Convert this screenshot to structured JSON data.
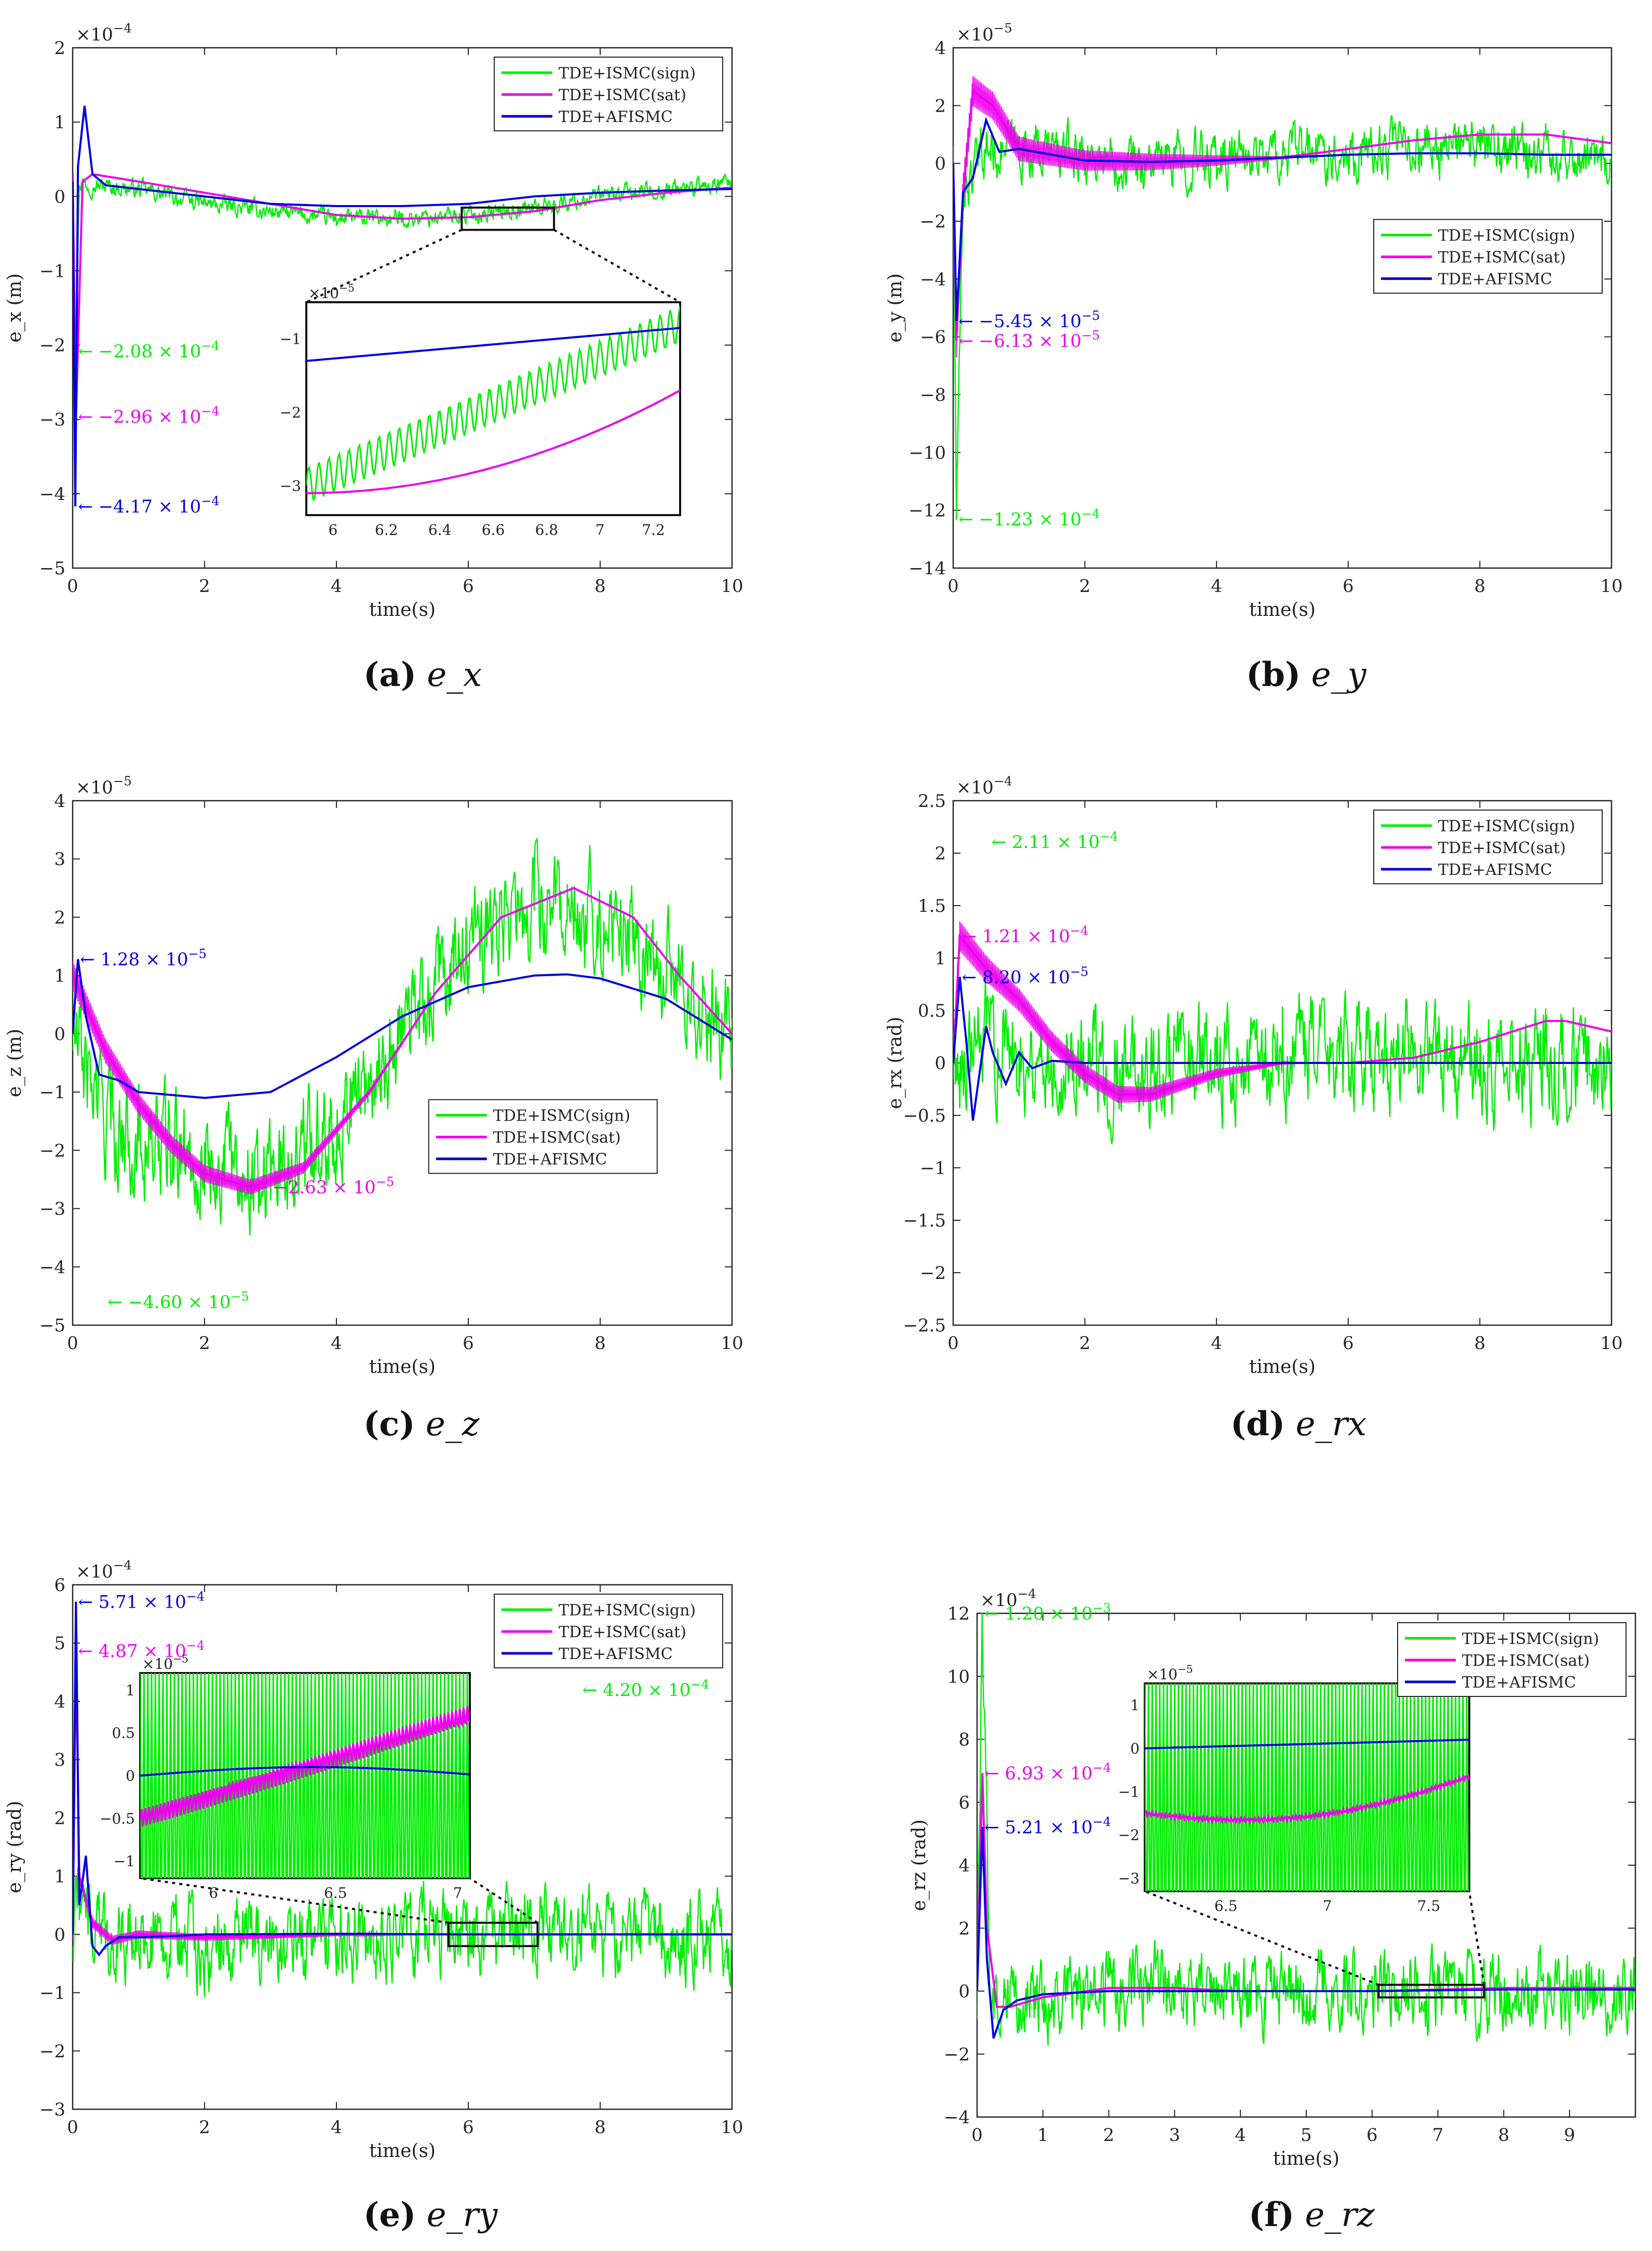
{
  "figure": {
    "panels": [
      {
        "caption_label": "(a)",
        "caption_symbol": "e_x"
      },
      {
        "caption_label": "(b)",
        "caption_symbol": "e_y"
      },
      {
        "caption_label": "(c)",
        "caption_symbol": "e_z"
      },
      {
        "caption_label": "(d)",
        "caption_symbol": "e_rx"
      },
      {
        "caption_label": "(e)",
        "caption_symbol": "e_ry"
      },
      {
        "caption_label": "(f)",
        "caption_symbol": "e_rz"
      }
    ]
  },
  "chart_data": [
    {
      "id": "a",
      "type": "line",
      "caption": "(a) e_x",
      "xlabel": "time(s)",
      "ylabel": "e_x (m)",
      "y_exponent": "×10^-4",
      "xlim": [
        0,
        10
      ],
      "ylim": [
        -5,
        2
      ],
      "xticks": [
        0,
        2,
        4,
        6,
        8,
        10
      ],
      "yticks": [
        -5,
        -4,
        -3,
        -2,
        -1,
        0,
        1,
        2
      ],
      "legend": [
        "TDE+ISMC(sign)",
        "TDE+ISMC(sat)",
        "TDE+AFISMC"
      ],
      "legend_position": "top-right",
      "colors": [
        "#00ee00",
        "#ee00ee",
        "#0000dd"
      ],
      "series": [
        {
          "name": "TDE+ISMC(sign)",
          "x": [
            0,
            0.05,
            0.1,
            0.3,
            1,
            2,
            3,
            4,
            5,
            6,
            7,
            8,
            9,
            10
          ],
          "y": [
            0,
            -2.08,
            0.2,
            0.15,
            0.1,
            -0.1,
            -0.2,
            -0.3,
            -0.3,
            -0.25,
            -0.15,
            0,
            0.1,
            0.15
          ],
          "noise": 0.12
        },
        {
          "name": "TDE+ISMC(sat)",
          "x": [
            0,
            0.05,
            0.15,
            0.3,
            1,
            2,
            3,
            4,
            5,
            6,
            7,
            8,
            9,
            10
          ],
          "y": [
            0.3,
            -2.96,
            0.2,
            0.3,
            0.2,
            0.05,
            -0.1,
            -0.25,
            -0.3,
            -0.28,
            -0.2,
            -0.05,
            0.05,
            0.12
          ]
        },
        {
          "name": "TDE+AFISMC",
          "x": [
            0,
            0.04,
            0.08,
            0.18,
            0.3,
            0.5,
            1,
            2,
            3,
            4,
            5,
            6,
            7,
            8,
            9,
            10
          ],
          "y": [
            0.2,
            -4.17,
            0.4,
            1.22,
            0.3,
            0.15,
            0.1,
            0,
            -0.1,
            -0.13,
            -0.13,
            -0.1,
            0,
            0.05,
            0.08,
            0.1
          ]
        }
      ],
      "annotations": [
        {
          "text": "-2.08 × 10^-4",
          "x": 0.05,
          "y": -2.08,
          "color": "#00ee00"
        },
        {
          "text": "-2.96 × 10^-4",
          "x": 0.05,
          "y": -2.96,
          "color": "#ee00ee"
        },
        {
          "text": "-4.17 × 10^-4",
          "x": 0.05,
          "y": -4.17,
          "color": "#0000dd"
        }
      ],
      "zoom_box": {
        "xlim": [
          5.9,
          7.3
        ],
        "ylim": [
          -3.4,
          -0.5
        ],
        "exponent": "×10^-5",
        "xticks": [
          6,
          6.2,
          6.4,
          6.6,
          6.8,
          7,
          7.2
        ],
        "yticks": [
          -3,
          -2,
          -1
        ]
      }
    },
    {
      "id": "b",
      "type": "line",
      "caption": "(b) e_y",
      "xlabel": "time(s)",
      "ylabel": "e_y (m)",
      "y_exponent": "×10^-5",
      "xlim": [
        0,
        10
      ],
      "ylim": [
        -14,
        4
      ],
      "xticks": [
        0,
        2,
        4,
        6,
        8,
        10
      ],
      "yticks": [
        -14,
        -12,
        -10,
        -8,
        -6,
        -4,
        -2,
        0,
        2,
        4
      ],
      "legend": [
        "TDE+ISMC(sign)",
        "TDE+ISMC(sat)",
        "TDE+AFISMC"
      ],
      "legend_position": "right",
      "colors": [
        "#00ee00",
        "#ee00ee",
        "#0000dd"
      ],
      "series": [
        {
          "name": "TDE+ISMC(sign)",
          "x": [
            0,
            0.05,
            0.15,
            0.5,
            1,
            2,
            3,
            4,
            5,
            6,
            7,
            8,
            9,
            10
          ],
          "y": [
            0,
            -12.3,
            -1,
            0.5,
            0.5,
            0.3,
            0,
            0.2,
            0.3,
            0.4,
            0.5,
            0.5,
            0.4,
            0.3
          ],
          "noise": 0.9
        },
        {
          "name": "TDE+ISMC(sat)",
          "x": [
            0,
            0.05,
            0.15,
            0.3,
            0.6,
            1,
            2,
            3,
            4,
            5,
            6,
            7,
            8,
            9,
            10
          ],
          "y": [
            0,
            -6.13,
            -1,
            2.5,
            2.0,
            0.5,
            0.1,
            0.05,
            0.1,
            0.2,
            0.5,
            0.8,
            1.0,
            1.0,
            0.7
          ],
          "band": 1.2
        },
        {
          "name": "TDE+AFISMC",
          "x": [
            0,
            0.05,
            0.15,
            0.3,
            0.5,
            0.7,
            1,
            1.5,
            2,
            3,
            4,
            5,
            6,
            7,
            8,
            9,
            10
          ],
          "y": [
            0,
            -5.45,
            -1,
            -0.5,
            1.5,
            0.4,
            0.5,
            0.3,
            0.1,
            0.05,
            0.1,
            0.2,
            0.3,
            0.35,
            0.35,
            0.3,
            0.3
          ]
        }
      ],
      "annotations": [
        {
          "text": "-5.45 × 10^-5",
          "x": 0.05,
          "y": -5.45,
          "color": "#0000dd"
        },
        {
          "text": "-6.13 × 10^-5",
          "x": 0.05,
          "y": -6.13,
          "color": "#ee00ee"
        },
        {
          "text": "-1.23 × 10^-4",
          "x": 0.05,
          "y": -12.3,
          "color": "#00ee00"
        }
      ]
    },
    {
      "id": "c",
      "type": "line",
      "caption": "(c) e_z",
      "xlabel": "time(s)",
      "ylabel": "e_z (m)",
      "y_exponent": "×10^-5",
      "xlim": [
        0,
        10
      ],
      "ylim": [
        -5,
        4
      ],
      "xticks": [
        0,
        2,
        4,
        6,
        8,
        10
      ],
      "yticks": [
        -5,
        -4,
        -3,
        -2,
        -1,
        0,
        1,
        2,
        3,
        4
      ],
      "legend": [
        "TDE+ISMC(sign)",
        "TDE+ISMC(sat)",
        "TDE+AFISMC"
      ],
      "legend_position": "lower-right",
      "colors": [
        "#00ee00",
        "#ee00ee",
        "#0000dd"
      ],
      "series": [
        {
          "name": "TDE+ISMC(sign)",
          "x": [
            0,
            0.5,
            1,
            2,
            3,
            4,
            5,
            6,
            7,
            7.5,
            8,
            9,
            10
          ],
          "y": [
            0,
            -1.5,
            -1.8,
            -2.2,
            -2.4,
            -1.5,
            0,
            1.5,
            2.2,
            2.3,
            2.0,
            1.0,
            0
          ],
          "noise": 0.9
        },
        {
          "name": "TDE+ISMC(sat)",
          "x": [
            0,
            0.5,
            1,
            1.5,
            2,
            2.7,
            3.5,
            4.5,
            5.5,
            6.5,
            7.6,
            8.5,
            9.2,
            10
          ],
          "y": [
            1.0,
            -0.3,
            -1.2,
            -1.9,
            -2.4,
            -2.63,
            -2.3,
            -1.0,
            0.7,
            2.0,
            2.5,
            2.0,
            1.0,
            0
          ],
          "band": 0.5
        },
        {
          "name": "TDE+AFISMC",
          "x": [
            0,
            0.08,
            0.2,
            0.4,
            0.7,
            1,
            1.5,
            2,
            3,
            4,
            5,
            6,
            7,
            7.5,
            8,
            9,
            10
          ],
          "y": [
            0,
            1.28,
            0.3,
            -0.7,
            -0.8,
            -1.0,
            -1.05,
            -1.1,
            -1.0,
            -0.4,
            0.3,
            0.8,
            1.0,
            1.02,
            0.95,
            0.6,
            -0.1
          ]
        }
      ],
      "annotations": [
        {
          "text": "1.28 × 10^-5",
          "x": 0.08,
          "y": 1.28,
          "color": "#0000dd"
        },
        {
          "text": "-2.63 × 10^-5",
          "x": 2.7,
          "y": -2.63,
          "color": "#ee00ee"
        },
        {
          "text": "-4.60 × 10^-5",
          "x": 0.5,
          "y": -4.6,
          "color": "#00ee00"
        }
      ]
    },
    {
      "id": "d",
      "type": "line",
      "caption": "(d) e_rx",
      "xlabel": "time(s)",
      "ylabel": "e_rx (rad)",
      "y_exponent": "×10^-4",
      "xlim": [
        0,
        10
      ],
      "ylim": [
        -2.5,
        2.5
      ],
      "xticks": [
        0,
        2,
        4,
        6,
        8,
        10
      ],
      "yticks": [
        -2.5,
        -2,
        -1.5,
        -1,
        -0.5,
        0,
        0.5,
        1,
        1.5,
        2,
        2.5
      ],
      "legend": [
        "TDE+ISMC(sign)",
        "TDE+ISMC(sat)",
        "TDE+AFISMC"
      ],
      "legend_position": "top-right",
      "colors": [
        "#00ee00",
        "#ee00ee",
        "#0000dd"
      ],
      "series": [
        {
          "name": "TDE+ISMC(sign)",
          "x": [
            0,
            0.5,
            1,
            2,
            3,
            4,
            5,
            6,
            7,
            8,
            9,
            10
          ],
          "y": [
            0,
            0.2,
            0.1,
            0,
            -0.1,
            0,
            0.05,
            0.1,
            0.1,
            0,
            0,
            0
          ],
          "noise": 0.5
        },
        {
          "name": "TDE+ISMC(sat)",
          "x": [
            0,
            0.1,
            0.5,
            1,
            1.5,
            2,
            2.5,
            3,
            4,
            5,
            6,
            7,
            8,
            9,
            9.3,
            10
          ],
          "y": [
            0,
            1.21,
            0.9,
            0.6,
            0.2,
            -0.1,
            -0.3,
            -0.3,
            -0.1,
            0,
            0,
            0.05,
            0.2,
            0.4,
            0.4,
            0.3
          ],
          "band": 0.3
        },
        {
          "name": "TDE+AFISMC",
          "x": [
            0,
            0.1,
            0.2,
            0.3,
            0.4,
            0.5,
            0.6,
            0.8,
            1,
            1.2,
            1.5,
            2,
            10
          ],
          "y": [
            0,
            0.82,
            0.2,
            -0.55,
            -0.1,
            0.35,
            0.1,
            -0.2,
            0.1,
            -0.05,
            0.02,
            0,
            0
          ]
        }
      ],
      "annotations": [
        {
          "text": "2.11 × 10^-4",
          "x": 0.55,
          "y": 2.11,
          "color": "#00ee00"
        },
        {
          "text": "1.21 × 10^-4",
          "x": 0.1,
          "y": 1.21,
          "color": "#ee00ee"
        },
        {
          "text": "8.20 × 10^-5",
          "x": 0.1,
          "y": 0.82,
          "color": "#0000dd"
        }
      ]
    },
    {
      "id": "e",
      "type": "line",
      "caption": "(e) e_ry",
      "xlabel": "time(s)",
      "ylabel": "e_ry (rad)",
      "y_exponent": "×10^-4",
      "xlim": [
        0,
        10
      ],
      "ylim": [
        -3,
        6
      ],
      "xticks": [
        0,
        2,
        4,
        6,
        8,
        10
      ],
      "yticks": [
        -3,
        -2,
        -1,
        0,
        1,
        2,
        3,
        4,
        5,
        6
      ],
      "legend": [
        "TDE+ISMC(sign)",
        "TDE+ISMC(sat)",
        "TDE+AFISMC"
      ],
      "legend_position": "top-right",
      "colors": [
        "#00ee00",
        "#ee00ee",
        "#0000dd"
      ],
      "series": [
        {
          "name": "TDE+ISMC(sign)",
          "x": [
            0,
            0.1,
            0.3,
            1,
            2,
            4,
            6,
            7.7,
            8,
            10
          ],
          "y": [
            0,
            1.0,
            0,
            0,
            -0.2,
            0,
            0,
            0.2,
            0,
            0
          ],
          "noise": 0.7
        },
        {
          "name": "TDE+ISMC(sat)",
          "x": [
            0,
            0.05,
            0.1,
            0.3,
            0.6,
            1,
            2,
            4,
            6,
            8,
            10
          ],
          "y": [
            0,
            4.87,
            1,
            0.2,
            -0.1,
            0,
            -0.05,
            0,
            0,
            0,
            0
          ],
          "band": 0.2
        },
        {
          "name": "TDE+AFISMC",
          "x": [
            0,
            0.05,
            0.1,
            0.2,
            0.3,
            0.4,
            0.5,
            0.7,
            1,
            1.5,
            2,
            4,
            6,
            8,
            10
          ],
          "y": [
            0,
            5.71,
            0.5,
            1.35,
            -0.2,
            -0.35,
            -0.2,
            -0.05,
            -0.05,
            -0.03,
            0,
            0.01,
            0,
            0,
            0
          ]
        }
      ],
      "annotations": [
        {
          "text": "5.71 × 10^-4",
          "x": 0.05,
          "y": 5.71,
          "color": "#0000dd"
        },
        {
          "text": "4.87 × 10^-4",
          "x": 0.05,
          "y": 4.87,
          "color": "#ee00ee"
        },
        {
          "text": "4.20 × 10^-4",
          "x": 7.7,
          "y": 4.2,
          "color": "#00ee00"
        }
      ],
      "zoom_box": {
        "xlim": [
          5.7,
          7.05
        ],
        "ylim": [
          -1.2,
          1.2
        ],
        "exponent": "×10^-5",
        "xticks": [
          6,
          6.5,
          7
        ],
        "yticks": [
          -1,
          -0.5,
          0,
          0.5,
          1
        ]
      }
    },
    {
      "id": "f",
      "type": "line",
      "caption": "(f) e_rz",
      "xlabel": "time(s)",
      "ylabel": "e_rz (rad)",
      "y_exponent": "×10^-4",
      "xlim": [
        0,
        10
      ],
      "ylim": [
        -4,
        12
      ],
      "xticks": [
        0,
        1,
        2,
        3,
        4,
        5,
        6,
        7,
        8,
        9
      ],
      "yticks": [
        -4,
        -2,
        0,
        2,
        4,
        6,
        8,
        10,
        12
      ],
      "legend": [
        "TDE+ISMC(sign)",
        "TDE+ISMC(sat)",
        "TDE+AFISMC"
      ],
      "legend_position": "top-right",
      "colors": [
        "#00ee00",
        "#ee00ee",
        "#0000dd"
      ],
      "series": [
        {
          "name": "TDE+ISMC(sign)",
          "x": [
            0,
            0.08,
            0.2,
            0.5,
            1,
            2,
            3,
            4,
            5,
            6,
            7,
            8,
            9,
            10
          ],
          "y": [
            0,
            12.0,
            0,
            0,
            -0.5,
            0,
            0.3,
            0,
            0,
            0,
            0,
            0,
            0,
            0
          ],
          "noise": 1.2
        },
        {
          "name": "TDE+ISMC(sat)",
          "x": [
            0,
            0.08,
            0.15,
            0.3,
            0.5,
            1,
            2,
            3,
            4,
            6,
            8,
            10
          ],
          "y": [
            0,
            6.93,
            2,
            -0.5,
            -0.5,
            -0.2,
            0.1,
            0.1,
            0,
            0,
            0.1,
            0.1
          ]
        },
        {
          "name": "TDE+AFISMC",
          "x": [
            0,
            0.08,
            0.15,
            0.25,
            0.4,
            0.6,
            1,
            2,
            4,
            6,
            8,
            10
          ],
          "y": [
            0,
            5.21,
            1,
            -1.5,
            -0.6,
            -0.3,
            -0.1,
            0,
            0,
            0,
            0.05,
            0.05
          ]
        }
      ],
      "annotations": [
        {
          "text": "1.20 × 10^-3",
          "x": 0.08,
          "y": 12.0,
          "color": "#00ee00"
        },
        {
          "text": "6.93 × 10^-4",
          "x": 0.08,
          "y": 6.93,
          "color": "#ee00ee"
        },
        {
          "text": "5.21 × 10^-4",
          "x": 0.08,
          "y": 5.21,
          "color": "#0000dd"
        }
      ],
      "zoom_box": {
        "xlim": [
          6.1,
          7.7
        ],
        "ylim": [
          -3.3,
          1.5
        ],
        "exponent": "×10^-5",
        "xticks": [
          6.5,
          7,
          7.5
        ],
        "yticks": [
          -3,
          -2,
          -1,
          0,
          1
        ]
      }
    }
  ]
}
